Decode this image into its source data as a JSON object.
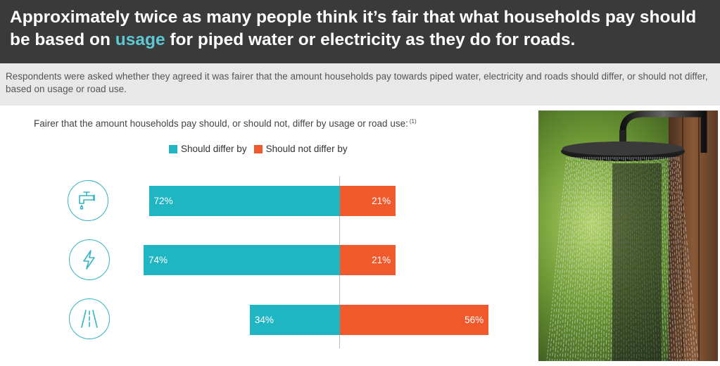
{
  "header": {
    "title_part1": "Approximately twice as many people think it’s fair that what households pay should be based on ",
    "title_highlight": "usage",
    "title_part2": " for piped water or electricity as they do for roads."
  },
  "subheader": {
    "text": "Respondents were asked whether they agreed it was fairer that the amount households pay towards piped water, electricity and roads should differ, or should not differ, based on usage or road use."
  },
  "chart_data": {
    "type": "bar",
    "question": "Fairer that the amount households pay should, or should not, differ by usage or road use:",
    "footnote_marker": "(1)",
    "categories": [
      "water-tap-icon",
      "lightning-icon",
      "road-icon"
    ],
    "series": [
      {
        "name": "Should differ by",
        "color": "#1fb5c2",
        "values": [
          72,
          74,
          34
        ],
        "labels": [
          "72%",
          "74%",
          "34%"
        ]
      },
      {
        "name": "Should not differ by",
        "color": "#f0592b",
        "values": [
          21,
          21,
          56
        ],
        "labels": [
          "21%",
          "21%",
          "56%"
        ]
      }
    ],
    "layout": "diverging",
    "legend_position": "top"
  },
  "colors": {
    "header_bg": "#3a3a3a",
    "highlight": "#5cc8d4",
    "differ": "#1fb5c2",
    "not_differ": "#f0592b",
    "icon_stroke": "#33b5c2"
  },
  "photo": {
    "subject": "shower-head-photo"
  }
}
